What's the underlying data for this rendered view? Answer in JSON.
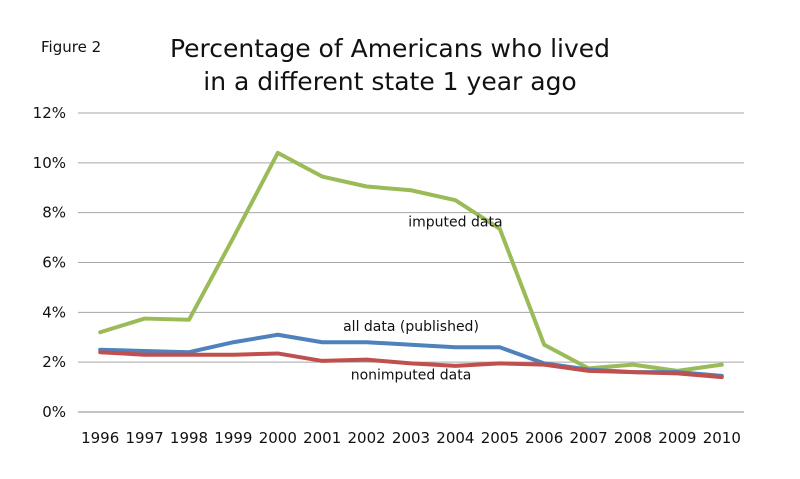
{
  "figure_label": "Figure 2",
  "chart_data": {
    "type": "line",
    "title_lines": [
      "Percentage of Americans who lived",
      "in a different state 1 year ago"
    ],
    "xlabel": "",
    "ylabel": "",
    "x": [
      "1996",
      "1997",
      "1998",
      "1999",
      "2000",
      "2001",
      "2002",
      "2003",
      "2004",
      "2005",
      "2006",
      "2007",
      "2008",
      "2009",
      "2010"
    ],
    "ylim": [
      0,
      12
    ],
    "yticks": [
      0,
      2,
      4,
      6,
      8,
      10,
      12
    ],
    "ytick_labels": [
      "0%",
      "2%",
      "4%",
      "6%",
      "8%",
      "10%",
      "12%"
    ],
    "grid": true,
    "series": [
      {
        "key": "imputed",
        "color": "#9bbb59",
        "values": [
          3.2,
          3.75,
          3.7,
          7.0,
          10.4,
          9.45,
          9.05,
          8.9,
          8.5,
          7.35,
          2.7,
          1.75,
          1.9,
          1.65,
          1.9
        ]
      },
      {
        "key": "all",
        "color": "#4f81bd",
        "values": [
          2.5,
          2.45,
          2.4,
          2.8,
          3.1,
          2.8,
          2.8,
          2.7,
          2.6,
          2.6,
          1.95,
          1.7,
          1.6,
          1.6,
          1.45
        ]
      },
      {
        "key": "nonimputed",
        "color": "#c0504d",
        "values": [
          2.4,
          2.3,
          2.3,
          2.3,
          2.35,
          2.05,
          2.1,
          1.95,
          1.85,
          1.95,
          1.9,
          1.65,
          1.6,
          1.55,
          1.4
        ]
      }
    ],
    "annotations": [
      {
        "text": "imputed data",
        "series": "imputed",
        "x": "2004",
        "y": 7.45
      },
      {
        "text": "all data (published)",
        "series": "all",
        "x": "2003",
        "y": 3.25
      },
      {
        "text": "nonimputed data",
        "series": "nonimputed",
        "x": "2003",
        "y": 1.3
      }
    ]
  }
}
